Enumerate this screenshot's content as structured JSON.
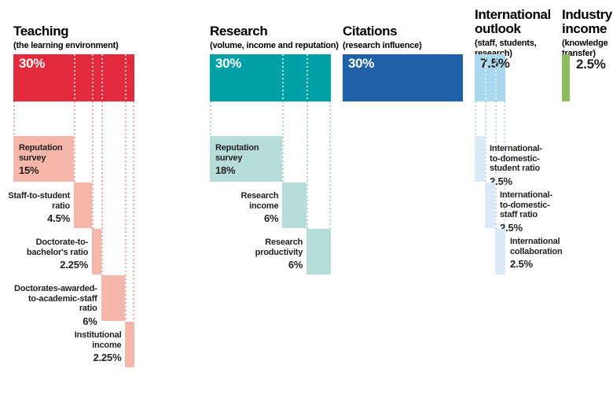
{
  "chart_data": {
    "type": "bar",
    "description": "University ranking methodology weightings: five pillars with sub-indicator breakdown",
    "background": "#ffffff",
    "text_color": "#231f20",
    "columns": [
      {
        "title_lines": [
          "Teaching"
        ],
        "subtitle_lines": [
          "(the learning environment)"
        ],
        "weight": 30,
        "weight_label": "30%",
        "bar_color": "#e42a3d",
        "block_color": "#f6b6aa",
        "guide_color": "#f0a99d",
        "pct_color": "#ffffff",
        "label_mode": "first-inside",
        "items": [
          {
            "lines": [
              "Reputation",
              "survey"
            ],
            "value": 15,
            "value_label": "15%"
          },
          {
            "lines": [
              "Staff-to-student",
              "ratio"
            ],
            "value": 4.5,
            "value_label": "4.5%"
          },
          {
            "lines": [
              "Doctorate-to-",
              "bachelor's ratio"
            ],
            "value": 2.25,
            "value_label": "2.25%"
          },
          {
            "lines": [
              "Doctorates-awarded-",
              "to-academic-staff",
              "ratio"
            ],
            "value": 6,
            "value_label": "6%"
          },
          {
            "lines": [
              "Institutional",
              "income"
            ],
            "value": 2.25,
            "value_label": "2.25%"
          }
        ]
      },
      {
        "title_lines": [
          "Research"
        ],
        "subtitle_lines": [
          "(volume, income and reputation)"
        ],
        "weight": 30,
        "weight_label": "30%",
        "bar_color": "#00a0a7",
        "block_color": "#b6ddd9",
        "guide_color": "#a3d5d1",
        "pct_color": "#ffffff",
        "label_mode": "first-inside",
        "items": [
          {
            "lines": [
              "Reputation",
              "survey"
            ],
            "value": 18,
            "value_label": "18%"
          },
          {
            "lines": [
              "Research",
              "income"
            ],
            "value": 6,
            "value_label": "6%"
          },
          {
            "lines": [
              "Research",
              "productivity"
            ],
            "value": 6,
            "value_label": "6%"
          }
        ]
      },
      {
        "title_lines": [
          "Citations"
        ],
        "subtitle_lines": [
          "(research influence)"
        ],
        "weight": 30,
        "weight_label": "30%",
        "bar_color": "#2062a9",
        "block_color": "",
        "guide_color": "",
        "pct_color": "#ffffff",
        "label_mode": "none",
        "items": []
      },
      {
        "title_lines": [
          "International",
          "outlook"
        ],
        "subtitle_lines": [
          "(staff, students,",
          "research)"
        ],
        "weight": 7.5,
        "weight_label": "7.5%",
        "bar_color": "#a9d8f0",
        "block_color": "#daeaf8",
        "guide_color": "#badcf2",
        "pct_color": "#231f20",
        "label_mode": "right",
        "items": [
          {
            "lines": [
              "International-",
              "to-domestic-",
              "student ratio"
            ],
            "value": 2.5,
            "value_label": "2.5%"
          },
          {
            "lines": [
              "International-",
              "to-domestic-",
              "staff ratio"
            ],
            "value": 2.5,
            "value_label": "2.5%"
          },
          {
            "lines": [
              "International",
              "collaboration"
            ],
            "value": 2.5,
            "value_label": "2.5%"
          }
        ]
      },
      {
        "title_lines": [
          "Industry",
          "income"
        ],
        "subtitle_lines": [
          "(knowledge",
          "transfer)"
        ],
        "weight": 2.5,
        "weight_label": "2.5%",
        "bar_color": "#8cbb60",
        "block_color": "",
        "guide_color": "",
        "pct_color": "#231f20",
        "pct_outside": true,
        "label_mode": "none",
        "items": []
      }
    ]
  }
}
